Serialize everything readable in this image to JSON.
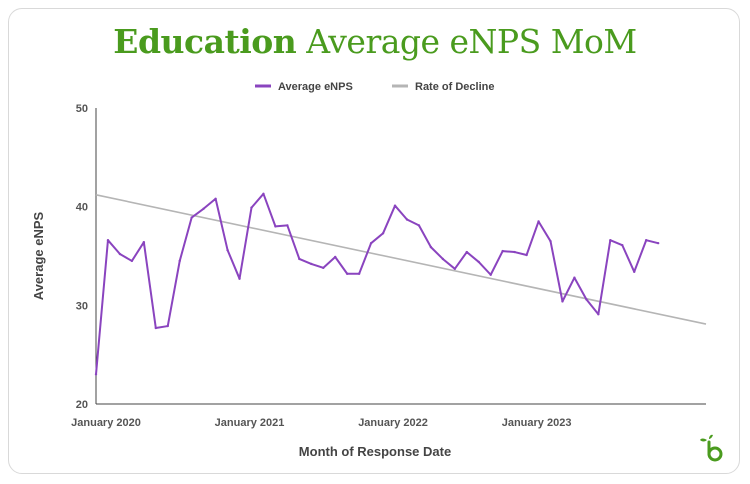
{
  "title_bold": "Education",
  "title_rest": " Average eNPS MoM",
  "colors": {
    "title": "#4a9b1e",
    "series_enps": "#8a44bf",
    "series_trend": "#b5b5b5",
    "axis": "#444444",
    "text": "#555555",
    "logo": "#4a9b1e"
  },
  "logo_icon": "bamboohr-b-logo",
  "chart_data": {
    "type": "line",
    "xlabel": "Month of Response Date",
    "ylabel": "Average eNPS",
    "ylim": [
      20,
      50
    ],
    "yticks": [
      20,
      30,
      40,
      50
    ],
    "grid": false,
    "legend_position": "top-center",
    "x_start": "2020-01",
    "x_end": "2024-04",
    "x_ticks": [
      {
        "date": "2020-01",
        "label": "January 2020"
      },
      {
        "date": "2021-01",
        "label": "January 2021"
      },
      {
        "date": "2022-01",
        "label": "January 2022"
      },
      {
        "date": "2023-01",
        "label": "January 2023"
      }
    ],
    "series": [
      {
        "name": "Average eNPS",
        "x": [
          "2020-01",
          "2020-02",
          "2020-03",
          "2020-04",
          "2020-05",
          "2020-06",
          "2020-07",
          "2020-08",
          "2020-09",
          "2020-10",
          "2020-11",
          "2020-12",
          "2021-01",
          "2021-02",
          "2021-03",
          "2021-04",
          "2021-05",
          "2021-06",
          "2021-07",
          "2021-08",
          "2021-09",
          "2021-10",
          "2021-11",
          "2021-12",
          "2022-01",
          "2022-02",
          "2022-03",
          "2022-04",
          "2022-05",
          "2022-06",
          "2022-07",
          "2022-08",
          "2022-09",
          "2022-10",
          "2022-11",
          "2022-12",
          "2023-01",
          "2023-02",
          "2023-03",
          "2023-04",
          "2023-05",
          "2023-06",
          "2023-07",
          "2023-08",
          "2023-09",
          "2023-10",
          "2023-11",
          "2023-12"
        ],
        "values": [
          23.0,
          36.6,
          35.2,
          34.5,
          36.4,
          27.7,
          27.9,
          34.5,
          38.9,
          39.8,
          40.8,
          35.6,
          32.7,
          39.9,
          41.3,
          38.0,
          38.1,
          34.7,
          34.2,
          33.8,
          34.9,
          33.2,
          33.2,
          36.3,
          37.3,
          40.1,
          38.7,
          38.1,
          35.9,
          34.7,
          33.7,
          35.4,
          34.4,
          33.1,
          35.5,
          35.4,
          35.1,
          38.5,
          36.5,
          30.4,
          32.8,
          30.6,
          29.1,
          36.6,
          36.1,
          33.4,
          36.6,
          36.3
        ]
      },
      {
        "name": "Rate of Decline",
        "x": [
          "2020-01",
          "2024-04"
        ],
        "values": [
          41.2,
          28.1
        ]
      }
    ]
  }
}
